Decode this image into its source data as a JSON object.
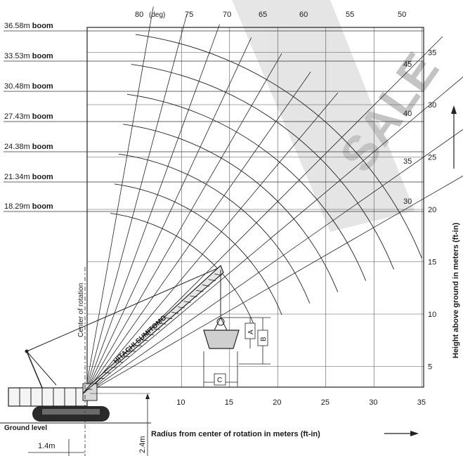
{
  "boom_lengths": [
    {
      "value": "36.58m",
      "unit": "boom"
    },
    {
      "value": "33.53m",
      "unit": "boom"
    },
    {
      "value": "30.48m",
      "unit": "boom"
    },
    {
      "value": "27.43m",
      "unit": "boom"
    },
    {
      "value": "24.38m",
      "unit": "boom"
    },
    {
      "value": "21.34m",
      "unit": "boom"
    },
    {
      "value": "18.29m",
      "unit": "boom"
    }
  ],
  "boom_angles": [
    "80",
    "75",
    "70",
    "65",
    "60",
    "55",
    "50",
    "45",
    "40",
    "35",
    "30"
  ],
  "boom_angle_unit": "(deg)",
  "radius_ticks": [
    "10",
    "15",
    "20",
    "25",
    "30",
    "35"
  ],
  "height_ticks": [
    "5",
    "10",
    "15",
    "20",
    "25",
    "30",
    "35"
  ],
  "x_axis_title": "Radius from center of rotation in meters (ft-in)",
  "y_axis_title": "Height above ground in meters (ft-in)",
  "ground_level_label": "Ground level",
  "center_of_rotation_label": "Center of rotation",
  "pin_offset_label": "1.4m",
  "pin_height_label": "2.4m",
  "hook_dim_a": "A",
  "hook_dim_b": "B",
  "hook_dim_c": "C",
  "boom_marking": "HITACHI SUMITOMO",
  "watermark": "SALE"
}
